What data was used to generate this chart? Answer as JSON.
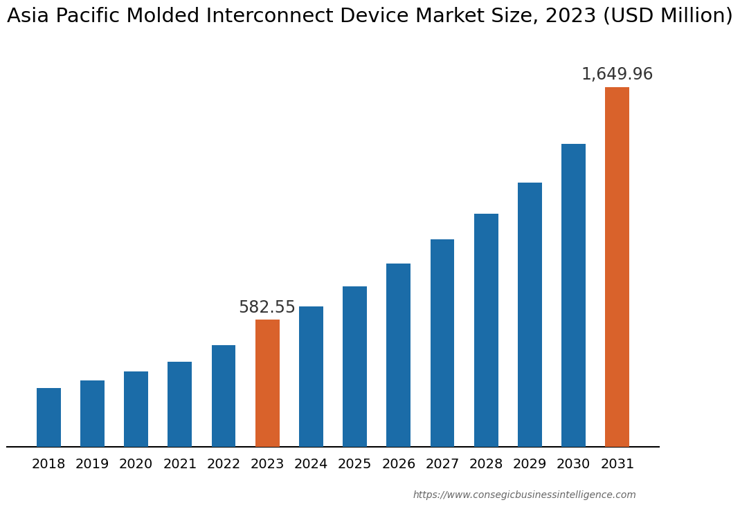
{
  "title": "Asia Pacific Molded Interconnect Device Market Size, 2023 (USD Million)",
  "years": [
    2018,
    2019,
    2020,
    2021,
    2022,
    2023,
    2024,
    2025,
    2026,
    2027,
    2028,
    2029,
    2030,
    2031
  ],
  "values": [
    270,
    305,
    345,
    392,
    465,
    582.55,
    645,
    735,
    840,
    950,
    1070,
    1210,
    1390,
    1649.96
  ],
  "bar_colors": [
    "#1b6ca8",
    "#1b6ca8",
    "#1b6ca8",
    "#1b6ca8",
    "#1b6ca8",
    "#d9622b",
    "#1b6ca8",
    "#1b6ca8",
    "#1b6ca8",
    "#1b6ca8",
    "#1b6ca8",
    "#1b6ca8",
    "#1b6ca8",
    "#d9622b"
  ],
  "highlight_years": [
    2023,
    2031
  ],
  "highlight_labels": [
    "582.55",
    "1,649.96"
  ],
  "background_color": "#ffffff",
  "title_fontsize": 21,
  "tick_fontsize": 14,
  "label_fontsize": 17,
  "watermark": "https://www.consegicbusinessintelligence.com",
  "ylim": [
    0,
    1850
  ],
  "bar_width": 0.55
}
